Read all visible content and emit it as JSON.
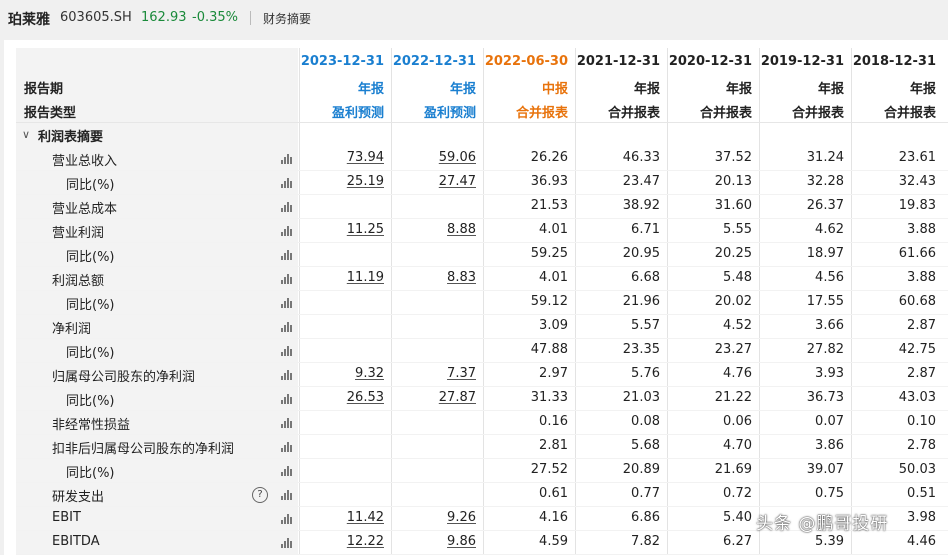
{
  "header": {
    "stock_name": "珀莱雅",
    "stock_code": "603605.SH",
    "price": "162.93",
    "change": "-0.35%",
    "page": "财务摘要"
  },
  "periods": [
    {
      "date": "2023-12-31",
      "period": "年报",
      "type": "盈利预测",
      "color": "#1a7fd0"
    },
    {
      "date": "2022-12-31",
      "period": "年报",
      "type": "盈利预测",
      "color": "#1a7fd0"
    },
    {
      "date": "2022-06-30",
      "period": "中报",
      "type": "合并报表",
      "color": "#e8730c"
    },
    {
      "date": "2021-12-31",
      "period": "年报",
      "type": "合并报表",
      "color": "#222222"
    },
    {
      "date": "2020-12-31",
      "period": "年报",
      "type": "合并报表",
      "color": "#222222"
    },
    {
      "date": "2019-12-31",
      "period": "年报",
      "type": "合并报表",
      "color": "#222222"
    },
    {
      "date": "2018-12-31",
      "period": "年报",
      "type": "合并报表",
      "color": "#222222"
    }
  ],
  "labels": {
    "period_row": "报告期",
    "type_row": "报告类型",
    "section": "利润表摘要"
  },
  "rows": [
    {
      "label": "营业总收入",
      "indent": 1,
      "values": [
        "73.94",
        "59.06",
        "26.26",
        "46.33",
        "37.52",
        "31.24",
        "23.61"
      ]
    },
    {
      "label": "同比(%)",
      "indent": 2,
      "values": [
        "25.19",
        "27.47",
        "36.93",
        "23.47",
        "20.13",
        "32.28",
        "32.43"
      ]
    },
    {
      "label": "营业总成本",
      "indent": 1,
      "values": [
        "",
        "",
        "21.53",
        "38.92",
        "31.60",
        "26.37",
        "19.83"
      ]
    },
    {
      "label": "营业利润",
      "indent": 1,
      "values": [
        "11.25",
        "8.88",
        "4.01",
        "6.71",
        "5.55",
        "4.62",
        "3.88"
      ]
    },
    {
      "label": "同比(%)",
      "indent": 2,
      "values": [
        "",
        "",
        "59.25",
        "20.95",
        "20.25",
        "18.97",
        "61.66"
      ]
    },
    {
      "label": "利润总额",
      "indent": 1,
      "values": [
        "11.19",
        "8.83",
        "4.01",
        "6.68",
        "5.48",
        "4.56",
        "3.88"
      ]
    },
    {
      "label": "同比(%)",
      "indent": 2,
      "values": [
        "",
        "",
        "59.12",
        "21.96",
        "20.02",
        "17.55",
        "60.68"
      ]
    },
    {
      "label": "净利润",
      "indent": 1,
      "values": [
        "",
        "",
        "3.09",
        "5.57",
        "4.52",
        "3.66",
        "2.87"
      ]
    },
    {
      "label": "同比(%)",
      "indent": 2,
      "values": [
        "",
        "",
        "47.88",
        "23.35",
        "23.27",
        "27.82",
        "42.75"
      ]
    },
    {
      "label": "归属母公司股东的净利润",
      "indent": 1,
      "values": [
        "9.32",
        "7.37",
        "2.97",
        "5.76",
        "4.76",
        "3.93",
        "2.87"
      ]
    },
    {
      "label": "同比(%)",
      "indent": 2,
      "values": [
        "26.53",
        "27.87",
        "31.33",
        "21.03",
        "21.22",
        "36.73",
        "43.03"
      ]
    },
    {
      "label": "非经常性损益",
      "indent": 1,
      "values": [
        "",
        "",
        "0.16",
        "0.08",
        "0.06",
        "0.07",
        "0.10"
      ]
    },
    {
      "label": "扣非后归属母公司股东的净利润",
      "indent": 1,
      "values": [
        "",
        "",
        "2.81",
        "5.68",
        "4.70",
        "3.86",
        "2.78"
      ]
    },
    {
      "label": "同比(%)",
      "indent": 2,
      "values": [
        "",
        "",
        "27.52",
        "20.89",
        "21.69",
        "39.07",
        "50.03"
      ]
    },
    {
      "label": "研发支出",
      "indent": 1,
      "help": true,
      "values": [
        "",
        "",
        "0.61",
        "0.77",
        "0.72",
        "0.75",
        "0.51"
      ]
    },
    {
      "label": "EBIT",
      "indent": 1,
      "values": [
        "11.42",
        "9.26",
        "4.16",
        "6.86",
        "5.40",
        "",
        "3.98"
      ]
    },
    {
      "label": "EBITDA",
      "indent": 1,
      "values": [
        "12.22",
        "9.86",
        "4.59",
        "7.82",
        "6.27",
        "5.39",
        "4.46"
      ]
    }
  ],
  "watermark": "头条 @鹏哥投研"
}
